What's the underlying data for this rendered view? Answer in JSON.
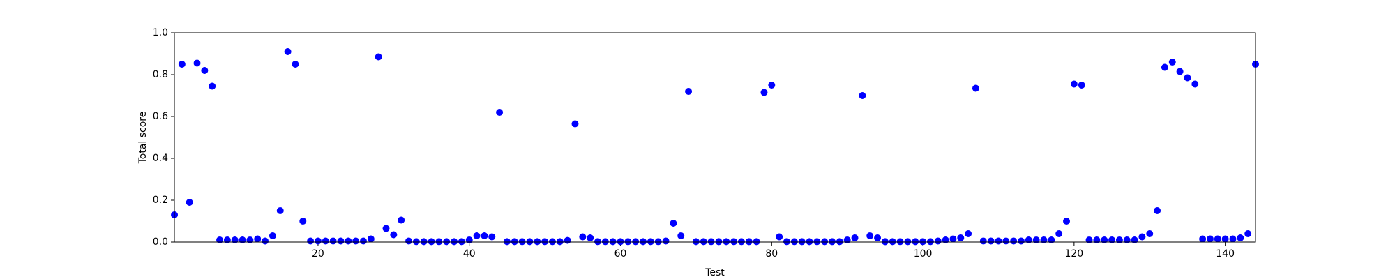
{
  "chart_data": {
    "type": "scatter",
    "xlabel": "Test",
    "ylabel": "Total score",
    "color": "#0000ff",
    "x": [
      1,
      2,
      3,
      4,
      5,
      6,
      7,
      8,
      9,
      10,
      11,
      12,
      13,
      14,
      15,
      16,
      17,
      18,
      19,
      20,
      21,
      22,
      23,
      24,
      25,
      26,
      27,
      28,
      29,
      30,
      31,
      32,
      33,
      34,
      35,
      36,
      37,
      38,
      39,
      40,
      41,
      42,
      43,
      44,
      45,
      46,
      47,
      48,
      49,
      50,
      51,
      52,
      53,
      54,
      55,
      56,
      57,
      58,
      59,
      60,
      61,
      62,
      63,
      64,
      65,
      66,
      67,
      68,
      69,
      70,
      71,
      72,
      73,
      74,
      75,
      76,
      77,
      78,
      79,
      80,
      81,
      82,
      83,
      84,
      85,
      86,
      87,
      88,
      89,
      90,
      91,
      92,
      93,
      94,
      95,
      96,
      97,
      98,
      99,
      100,
      101,
      102,
      103,
      104,
      105,
      106,
      107,
      108,
      109,
      110,
      111,
      112,
      113,
      114,
      115,
      116,
      117,
      118,
      119,
      120,
      121,
      122,
      123,
      124,
      125,
      126,
      127,
      128,
      129,
      130,
      131,
      132,
      133,
      134,
      135,
      136,
      137,
      138,
      139,
      140,
      141,
      142,
      143,
      144
    ],
    "values": [
      0.13,
      0.85,
      0.19,
      0.855,
      0.82,
      0.745,
      0.01,
      0.01,
      0.01,
      0.01,
      0.01,
      0.015,
      0.005,
      0.03,
      0.15,
      0.91,
      0.85,
      0.1,
      0.005,
      0.005,
      0.005,
      0.005,
      0.005,
      0.005,
      0.005,
      0.005,
      0.015,
      0.885,
      0.065,
      0.035,
      0.105,
      0.005,
      0.002,
      0.002,
      0.002,
      0.002,
      0.002,
      0.002,
      0.002,
      0.01,
      0.03,
      0.03,
      0.025,
      0.62,
      0.002,
      0.002,
      0.002,
      0.002,
      0.002,
      0.002,
      0.002,
      0.002,
      0.008,
      0.565,
      0.025,
      0.02,
      0.002,
      0.002,
      0.002,
      0.002,
      0.002,
      0.002,
      0.002,
      0.002,
      0.002,
      0.005,
      0.09,
      0.03,
      0.72,
      0.002,
      0.002,
      0.002,
      0.002,
      0.002,
      0.002,
      0.002,
      0.002,
      0.002,
      0.715,
      0.75,
      0.025,
      0.002,
      0.002,
      0.002,
      0.002,
      0.002,
      0.002,
      0.002,
      0.002,
      0.01,
      0.02,
      0.7,
      0.03,
      0.02,
      0.002,
      0.002,
      0.002,
      0.002,
      0.002,
      0.002,
      0.002,
      0.005,
      0.01,
      0.015,
      0.02,
      0.04,
      0.735,
      0.005,
      0.005,
      0.005,
      0.005,
      0.005,
      0.005,
      0.01,
      0.01,
      0.01,
      0.01,
      0.04,
      0.1,
      0.755,
      0.75,
      0.01,
      0.01,
      0.01,
      0.01,
      0.01,
      0.01,
      0.01,
      0.025,
      0.04,
      0.15,
      0.835,
      0.86,
      0.815,
      0.785,
      0.755,
      0.015,
      0.015,
      0.015,
      0.015,
      0.015,
      0.02,
      0.04,
      0.85
    ],
    "xlim": [
      1,
      144
    ],
    "xticks": [
      20,
      40,
      60,
      80,
      100,
      120,
      140
    ],
    "ylim": [
      0,
      1
    ],
    "yticks": [
      {
        "value": 0,
        "label": "0.0"
      },
      0.2,
      0.4,
      0.6,
      0.8,
      {
        "value": 1,
        "label": "1.0"
      }
    ]
  }
}
